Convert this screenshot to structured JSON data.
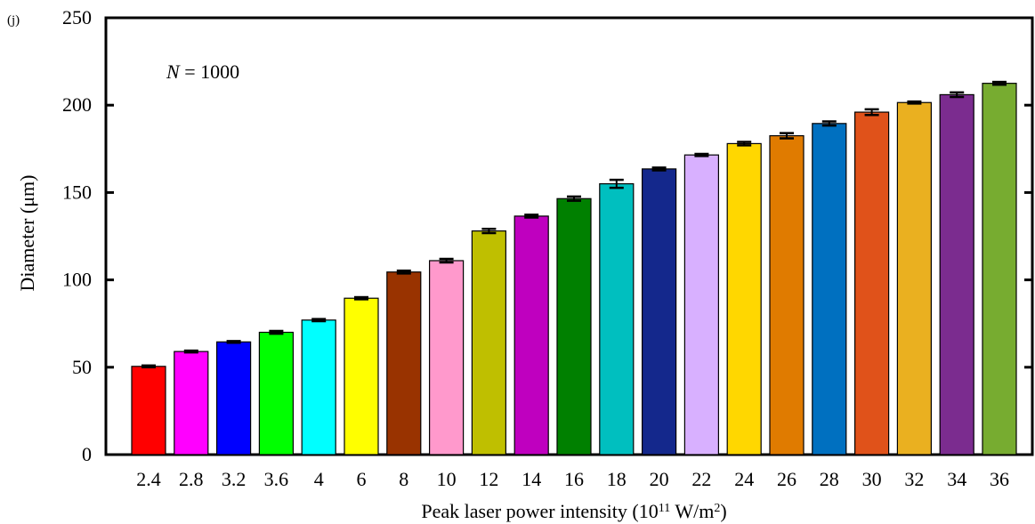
{
  "panel_label": "(j)",
  "annotation": {
    "italic": "N",
    "text": " = 1000"
  },
  "chart_data": {
    "type": "bar",
    "title": "",
    "xlabel_parts": {
      "main": "Peak laser power intensity (10",
      "sup1": "11",
      "mid": " W/m",
      "sup2": "2",
      "end": ")"
    },
    "ylabel": "Diameter (μm)",
    "ylim": [
      0,
      250
    ],
    "yticks": [
      0,
      50,
      100,
      150,
      200,
      250
    ],
    "grid": false,
    "legend": "none",
    "categories": [
      "2.4",
      "2.8",
      "3.2",
      "3.6",
      "4",
      "6",
      "8",
      "10",
      "12",
      "14",
      "16",
      "18",
      "20",
      "22",
      "24",
      "26",
      "28",
      "30",
      "32",
      "34",
      "36"
    ],
    "values": [
      50.5,
      59,
      64.5,
      70,
      77,
      89.5,
      104.5,
      111,
      128,
      136.5,
      146.5,
      155,
      163.5,
      171.5,
      178,
      182.5,
      189.5,
      196,
      201.5,
      206,
      212.5
    ],
    "errors": [
      0.5,
      0.5,
      0.5,
      0.8,
      0.6,
      0.6,
      0.8,
      1.0,
      1.2,
      0.8,
      1.2,
      2.3,
      0.8,
      0.6,
      1.0,
      1.5,
      1.2,
      1.6,
      0.6,
      1.3,
      0.8
    ],
    "colors": [
      "#ff0000",
      "#ff00ff",
      "#0000ff",
      "#00ff00",
      "#00ffff",
      "#ffff00",
      "#993300",
      "#ff99cc",
      "#bfbf00",
      "#bf00bf",
      "#008000",
      "#00bfbf",
      "#14288c",
      "#d8b0ff",
      "#ffd700",
      "#e07b00",
      "#0070c0",
      "#e0521a",
      "#eab020",
      "#7b2c8f",
      "#77ac30"
    ]
  }
}
